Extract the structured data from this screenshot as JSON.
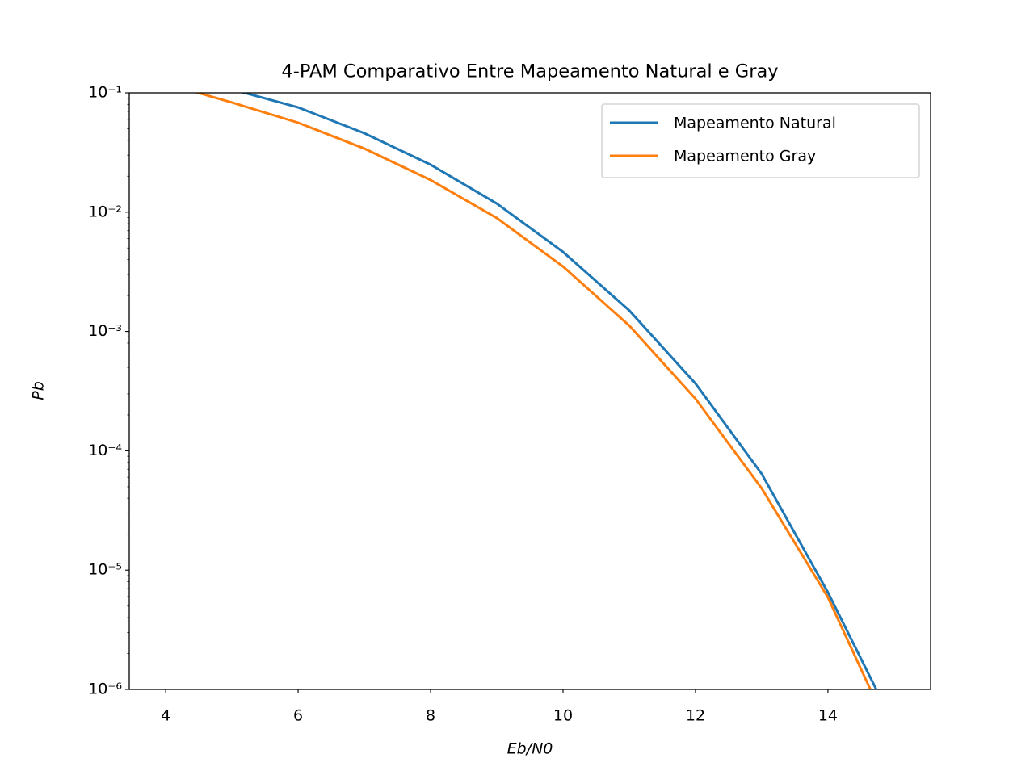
{
  "chart_data": {
    "type": "line",
    "title": "4-PAM Comparativo Entre Mapeamento Natural e Gray",
    "xlabel": "Eb/N0",
    "ylabel": "Pb",
    "x": [
      4,
      5,
      6,
      7,
      8,
      9,
      10,
      11,
      12,
      13,
      14,
      15
    ],
    "series": [
      {
        "name": "Mapeamento Natural",
        "color": "#1f77b4",
        "values": [
          0.14,
          0.107,
          0.0755,
          0.0459,
          0.025,
          0.0118,
          0.00464,
          0.0015,
          0.000366,
          6.4e-05,
          6.5e-06,
          5e-07
        ]
      },
      {
        "name": "Mapeamento Gray",
        "color": "#ff7f0e",
        "values": [
          0.12,
          0.083,
          0.0562,
          0.0341,
          0.0186,
          0.00893,
          0.0035,
          0.00112,
          0.000273,
          4.84e-05,
          5.9e-06,
          3.7e-07
        ]
      }
    ],
    "xlim": [
      3.45,
      15.55
    ],
    "xticks": [
      4,
      6,
      8,
      10,
      12,
      14
    ],
    "ylim": [
      1e-06,
      0.1
    ],
    "yscale": "log",
    "yticks": [
      {
        "value": 1e-06,
        "label": "10⁻⁶"
      },
      {
        "value": 1e-05,
        "label": "10⁻⁵"
      },
      {
        "value": 0.0001,
        "label": "10⁻⁴"
      },
      {
        "value": 0.001,
        "label": "10⁻³"
      },
      {
        "value": 0.01,
        "label": "10⁻²"
      },
      {
        "value": 0.1,
        "label": "10⁻¹"
      }
    ],
    "legend": "upper right",
    "grid": false
  }
}
